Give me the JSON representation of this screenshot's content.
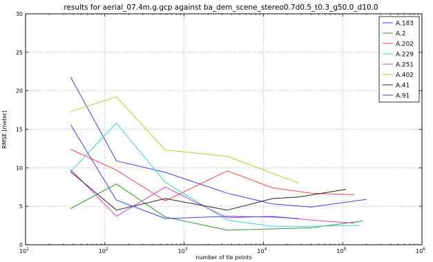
{
  "chart_data": {
    "type": "line",
    "title": "results for aerial_07.4m.g.gcp against ba_dem_scene_stereo0.7d0.5_t0.3_g50.0_d10.0",
    "xlabel": "number of tie points",
    "ylabel": "RMSE [meter]",
    "xscale": "log",
    "xlim": [
      10,
      1000000
    ],
    "ylim": [
      0,
      30
    ],
    "xticks": [
      {
        "value": 10,
        "base": "10",
        "exp": "1"
      },
      {
        "value": 100,
        "base": "10",
        "exp": "2"
      },
      {
        "value": 1000,
        "base": "10",
        "exp": "3"
      },
      {
        "value": 10000,
        "base": "10",
        "exp": "4"
      },
      {
        "value": 100000,
        "base": "10",
        "exp": "5"
      },
      {
        "value": 1000000,
        "base": "10",
        "exp": "6"
      }
    ],
    "yticks": [
      0,
      5,
      10,
      15,
      20,
      25,
      30
    ],
    "grid": true,
    "legend_position": "top-right",
    "series": [
      {
        "name": "A.183",
        "color": "#3a3aff",
        "x": [
          37,
          140,
          580,
          3500,
          13000,
          40000,
          200000
        ],
        "y": [
          21.8,
          10.9,
          9.4,
          6.7,
          5.3,
          4.9,
          5.9
        ]
      },
      {
        "name": "A.2",
        "color": "#2a9a2a",
        "x": [
          37,
          140,
          580,
          3500,
          40000,
          180000
        ],
        "y": [
          4.7,
          7.9,
          3.6,
          1.9,
          2.2,
          3.1
        ]
      },
      {
        "name": "A.202",
        "color": "#ff4040",
        "x": [
          37,
          140,
          580,
          3500,
          13000,
          40000,
          140000
        ],
        "y": [
          12.4,
          9.7,
          5.7,
          9.6,
          7.4,
          6.7,
          6.5
        ]
      },
      {
        "name": "A.229",
        "color": "#40d0d0",
        "x": [
          37,
          140,
          580,
          3500,
          13000,
          40000,
          160000
        ],
        "y": [
          9.5,
          15.8,
          8.1,
          3.2,
          2.4,
          2.4,
          2.5
        ]
      },
      {
        "name": "A.251",
        "color": "#d040d0",
        "x": [
          37,
          140,
          580,
          3500,
          13000,
          40000,
          140000
        ],
        "y": [
          9.8,
          3.7,
          7.5,
          3.5,
          3.7,
          3.2,
          2.8
        ]
      },
      {
        "name": "A.402",
        "color": "#c8c832",
        "x": [
          37,
          140,
          580,
          3500,
          28000
        ],
        "y": [
          17.3,
          19.2,
          12.3,
          11.5,
          8.0
        ]
      },
      {
        "name": "A.41",
        "color": "#202020",
        "x": [
          37,
          140,
          580,
          3500,
          13000,
          28000,
          110000
        ],
        "y": [
          9.5,
          4.5,
          6.0,
          4.5,
          6.0,
          6.2,
          7.2
        ]
      },
      {
        "name": "A.91",
        "color": "#3a3aff",
        "x": [
          37,
          140,
          580,
          3500,
          13000,
          28000
        ],
        "y": [
          15.6,
          5.8,
          3.4,
          3.7,
          3.6,
          3.4
        ]
      }
    ]
  }
}
